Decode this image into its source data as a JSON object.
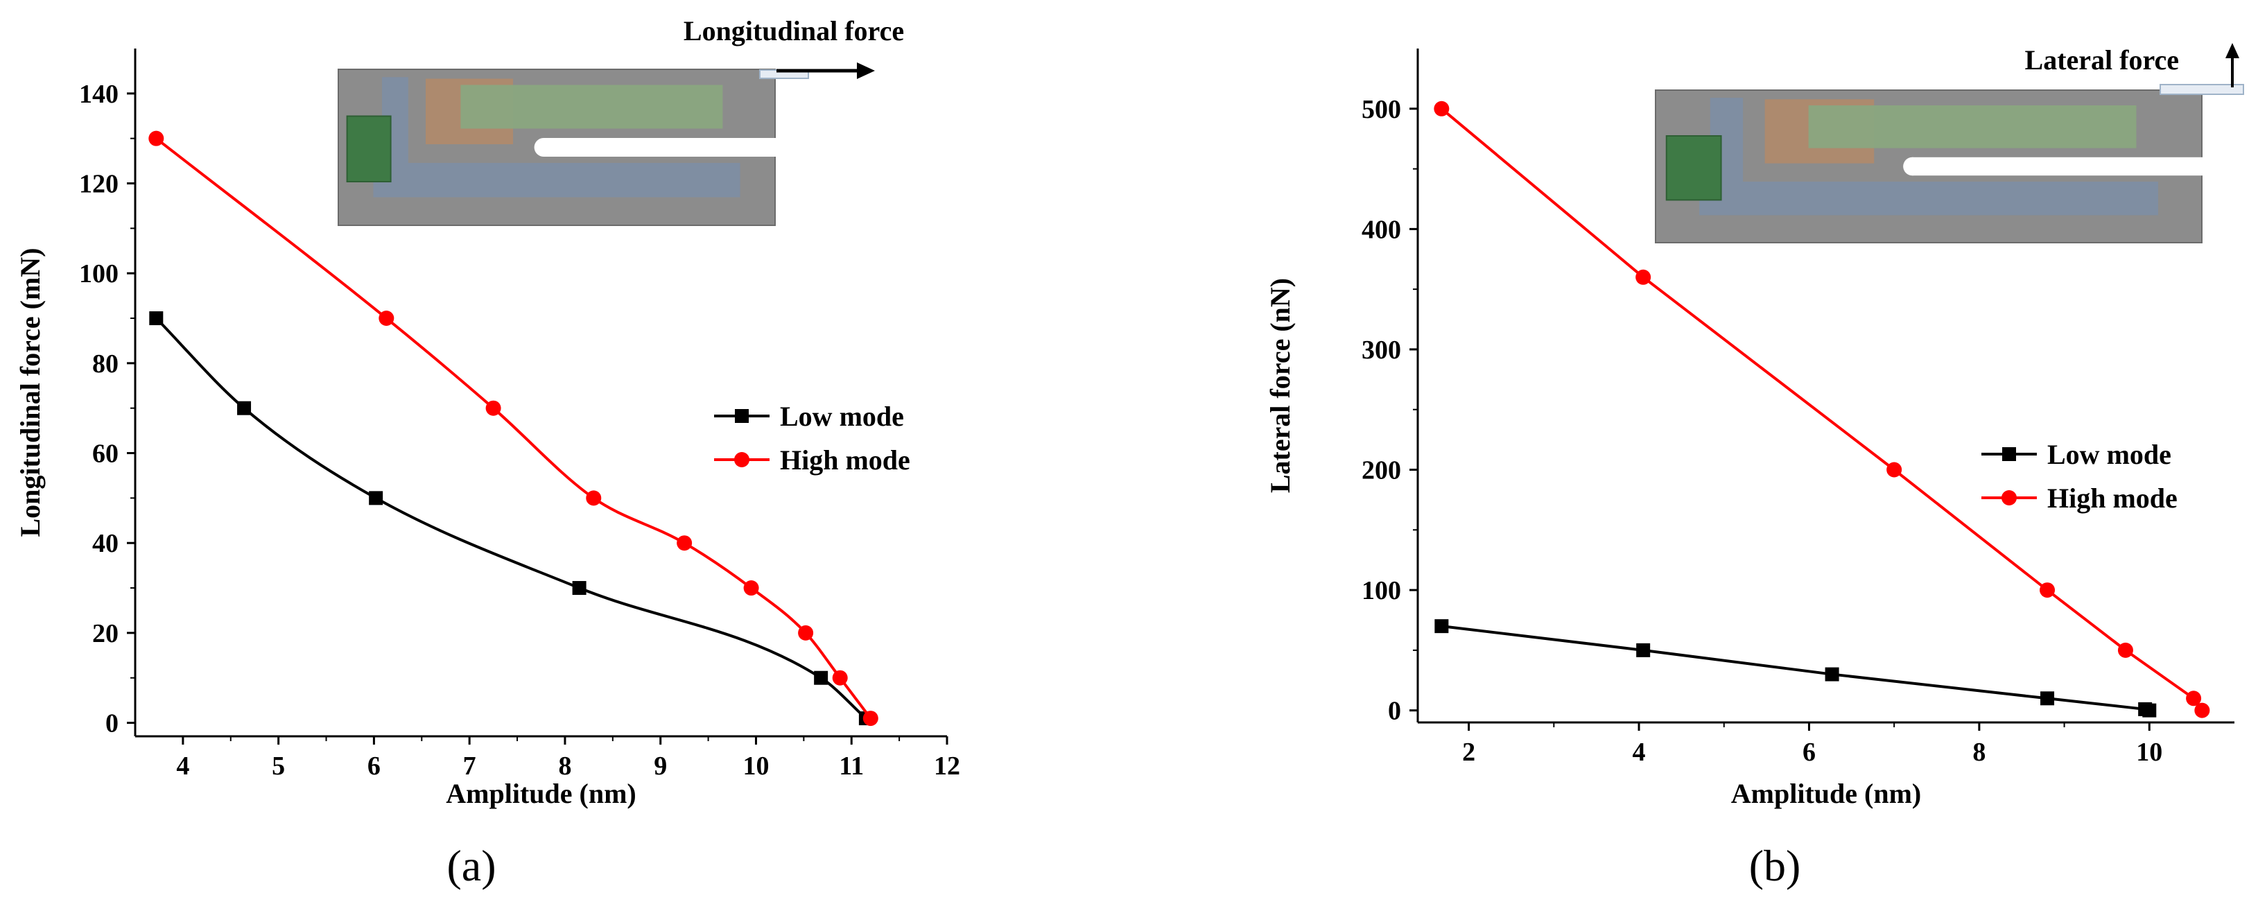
{
  "colors": {
    "low": "#000000",
    "high": "#ff0000"
  },
  "chart_data": [
    {
      "panel": "(a)",
      "panel_label": "(a)",
      "type": "line",
      "title": "",
      "xlabel": "Amplitude (nm)",
      "ylabel": "Longitudinal force  (mN)",
      "xlim": [
        3.5,
        12
      ],
      "ylim": [
        -3,
        150
      ],
      "xticks": [
        4,
        5,
        6,
        7,
        8,
        9,
        10,
        11,
        12
      ],
      "yticks": [
        0,
        20,
        40,
        60,
        80,
        100,
        120,
        140
      ],
      "legend": "center-right",
      "inset_label": "Longitudinal force",
      "inset_arrow": "right",
      "series": [
        {
          "name": "Low mode",
          "marker": "square",
          "color": "#000000",
          "x": [
            3.72,
            4.64,
            6.02,
            8.15,
            10.68,
            11.15
          ],
          "y": [
            90,
            70,
            50,
            30,
            10,
            1
          ]
        },
        {
          "name": "High mode",
          "marker": "circle",
          "color": "#ff0000",
          "x": [
            3.72,
            6.13,
            7.25,
            8.3,
            9.25,
            9.95,
            10.52,
            10.88,
            11.2
          ],
          "y": [
            130,
            90,
            70,
            50,
            40,
            30,
            20,
            10,
            1
          ]
        }
      ]
    },
    {
      "panel": "(b)",
      "panel_label": "(b)",
      "type": "line",
      "title": "",
      "xlabel": "Amplitude (nm)",
      "ylabel": "Lateral force  (nN)",
      "xlim": [
        1.4,
        11
      ],
      "ylim": [
        -10,
        550
      ],
      "xticks": [
        2,
        4,
        6,
        8,
        10
      ],
      "yticks": [
        0,
        100,
        200,
        300,
        400,
        500
      ],
      "legend": "center-right",
      "inset_label": "Lateral force",
      "inset_arrow": "up",
      "series": [
        {
          "name": "Low mode",
          "marker": "square",
          "color": "#000000",
          "x": [
            1.68,
            4.05,
            6.27,
            8.8,
            9.95,
            10.0
          ],
          "y": [
            70,
            50,
            30,
            10,
            1,
            0
          ]
        },
        {
          "name": "High mode",
          "marker": "circle",
          "color": "#ff0000",
          "x": [
            1.68,
            4.05,
            7.0,
            8.8,
            9.72,
            10.52,
            10.62
          ],
          "y": [
            500,
            360,
            200,
            100,
            50,
            10,
            0
          ]
        }
      ]
    }
  ]
}
